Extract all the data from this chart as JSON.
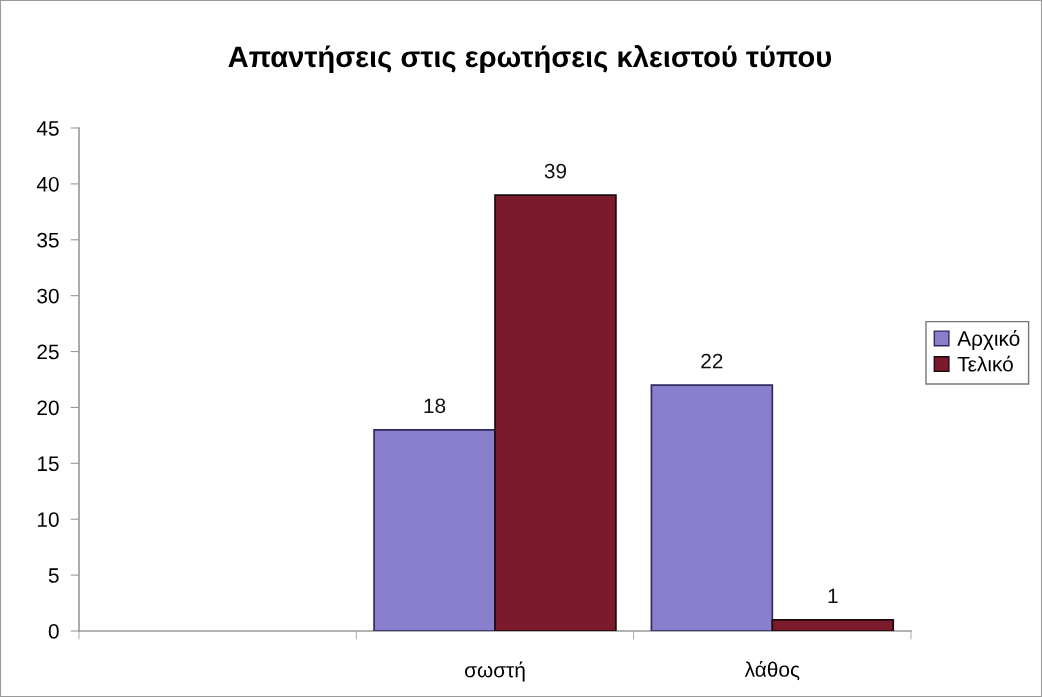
{
  "chart_data": {
    "type": "bar",
    "title": "Απαντήσεις στις ερωτήσεις κλειστού τύπου",
    "categories": [
      null,
      "σωστή",
      "λάθος"
    ],
    "series": [
      {
        "name": "Αρχικό",
        "color": "#8a7fcc",
        "values": [
          null,
          18,
          22
        ]
      },
      {
        "name": "Τελικό",
        "color": "#7a1a2a",
        "values": [
          null,
          39,
          1
        ]
      }
    ],
    "ylim": [
      0,
      45
    ],
    "yticks": [
      0,
      5,
      10,
      15,
      20,
      25,
      30,
      35,
      40,
      45
    ],
    "data_labels": true,
    "legend": "right"
  }
}
